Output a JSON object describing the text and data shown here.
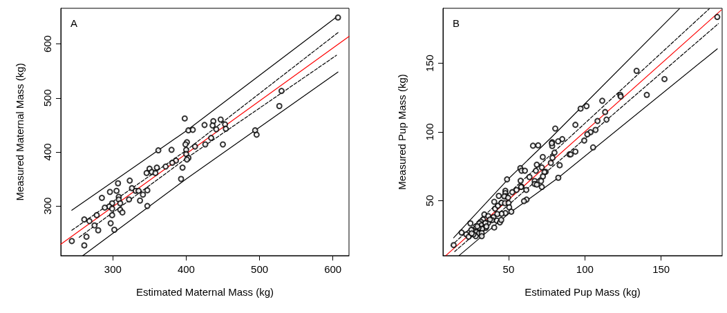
{
  "chart_data": [
    {
      "type": "scatter",
      "xlabel": "Estimated Maternal Mass (kg)",
      "ylabel": "Measured Maternal Mass (kg)",
      "annotations": [
        "A"
      ],
      "xlim": [
        229,
        622
      ],
      "xticks": [
        300,
        400,
        500,
        600
      ],
      "ylim": [
        208,
        666
      ],
      "yticks": [
        300,
        400,
        500,
        600
      ],
      "grid": false,
      "series": [
        {
          "marker": "circle",
          "color": "#000000",
          "x": [
            607,
            530,
            527,
            494,
            496,
            398,
            403,
            409,
            425,
            437,
            436,
            447,
            453,
            454,
            441,
            434,
            426,
            450,
            401,
            399,
            412,
            400,
            400,
            403,
            401,
            395,
            393,
            380,
            362,
            386,
            381,
            372,
            360,
            350,
            353,
            346,
            358,
            323,
            307,
            305,
            326,
            331,
            335,
            347,
            341,
            337,
            322,
            347,
            296,
            285,
            308,
            308,
            310,
            299,
            295,
            299,
            289,
            310,
            313,
            299,
            278,
            261,
            268,
            297,
            275,
            280,
            302,
            264,
            244,
            261
          ],
          "values": [
            649,
            513,
            485,
            440,
            432,
            462,
            440,
            441,
            450,
            457,
            449,
            460,
            451,
            443,
            442,
            426,
            414,
            414,
            418,
            414,
            410,
            404,
            396,
            389,
            386,
            371,
            350,
            404,
            403,
            384,
            380,
            373,
            371,
            369,
            363,
            361,
            361,
            347,
            342,
            328,
            333,
            328,
            328,
            329,
            321,
            310,
            312,
            300,
            326,
            315,
            317,
            312,
            305,
            305,
            299,
            295,
            297,
            293,
            288,
            283,
            283,
            275,
            272,
            268,
            264,
            255,
            256,
            243,
            235,
            227
          ]
        },
        {
          "type": "line",
          "line_style": "solid",
          "color": "#ff0000",
          "x": [
            229,
            622
          ],
          "values": [
            229,
            614
          ]
        },
        {
          "type": "line",
          "line_style": "solid",
          "color": "#000000",
          "x": [
            244,
            400,
            607
          ],
          "values": [
            292,
            439,
            652
          ]
        },
        {
          "type": "line",
          "line_style": "solid",
          "color": "#000000",
          "x": [
            259,
            400,
            607
          ],
          "values": [
            208,
            350,
            548
          ]
        },
        {
          "type": "line",
          "line_style": "dashed",
          "color": "#000000",
          "x": [
            244,
            400,
            607
          ],
          "values": [
            255,
            403,
            621
          ]
        },
        {
          "type": "line",
          "line_style": "dashed",
          "color": "#000000",
          "x": [
            254,
            400,
            605
          ],
          "values": [
            242,
            388,
            579
          ]
        }
      ]
    },
    {
      "type": "scatter",
      "xlabel": "Estimated Pup Mass (kg)",
      "ylabel": "Measured Pup Mass (kg)",
      "annotations": [
        "B"
      ],
      "xlim": [
        7,
        190
      ],
      "xticks": [
        50,
        100,
        150
      ],
      "ylim": [
        10,
        190
      ],
      "yticks": [
        50,
        100,
        150
      ],
      "grid": false,
      "series": [
        {
          "marker": "circle",
          "color": "#000000",
          "x": [
            186.8,
            133.9,
            152.2,
            140.6,
            123.2,
            123.5,
            111.4,
            113.3,
            114.2,
            108.3,
            107,
            103.7,
            101.6,
            99.6,
            105.4,
            97.2,
            101.1,
            93.8,
            93.8,
            89.9,
            90.7,
            80.6,
            85.2,
            82.5,
            78.6,
            78.6,
            78.3,
            80.1,
            78.8,
            77.7,
            83.5,
            82.6,
            66,
            69.4,
            72.4,
            68.5,
            71.8,
            67.9,
            74.3,
            73.5,
            72.5,
            63.7,
            67.1,
            71.3,
            67.1,
            68.5,
            71.8,
            57.7,
            58.5,
            60.7,
            57.9,
            58.5,
            58.2,
            61.6,
            61.8,
            60.1,
            49,
            55.2,
            52.4,
            47.9,
            47.9,
            48.4,
            47.2,
            49.7,
            43.6,
            40.6,
            41.2,
            43,
            45.4,
            47.6,
            50,
            50.4,
            51.8,
            47.9,
            45.4,
            42.6,
            40.1,
            39.2,
            42.3,
            44.3,
            45.2,
            40.6,
            34.1,
            36.7,
            36.6,
            33.3,
            31.8,
            30.8,
            32.3,
            34.1,
            35.1,
            32.7,
            30.3,
            28.2,
            27,
            28.8,
            30.6,
            32.4,
            32.4,
            28.5,
            27,
            25.6,
            25,
            22.3,
            23.8,
            19.2,
            14,
            34.8,
            37.8,
            35.5,
            29.5,
            25.8
          ],
          "values": [
            183.7,
            144.5,
            138.5,
            127,
            127,
            125.8,
            122.7,
            114.5,
            109,
            108,
            101.5,
            99.8,
            98.3,
            93.8,
            88.8,
            117,
            118.8,
            105.2,
            85.7,
            83.7,
            83.7,
            102.5,
            94.8,
            93.2,
            92.5,
            89.8,
            91.8,
            85,
            81.2,
            77.5,
            75.8,
            66.7,
            90,
            90.3,
            81.8,
            76.2,
            74.2,
            71.8,
            71,
            70.8,
            67.7,
            67.2,
            64.3,
            64.3,
            62.2,
            61.7,
            60,
            73.7,
            71.8,
            71.8,
            64.5,
            60.2,
            60,
            57.8,
            50.8,
            49.7,
            65.5,
            57.8,
            56.2,
            57.2,
            55.5,
            53.2,
            53.2,
            52.2,
            53.5,
            49.2,
            44.2,
            46.3,
            48.5,
            48.2,
            48.3,
            45.2,
            42,
            41,
            40.5,
            40.3,
            38,
            35.8,
            35.5,
            34.2,
            36,
            30.5,
            40,
            38.8,
            33.8,
            36.3,
            34.7,
            33.5,
            32.2,
            30.5,
            30.2,
            29.5,
            30.2,
            29.5,
            28,
            27.2,
            26.2,
            26.5,
            24.2,
            24.2,
            25.5,
            28.8,
            33.5,
            25.5,
            23.8,
            26.8,
            17.7,
            33.8,
            36.3,
            31.3,
            31.3,
            26.2
          ]
        },
        {
          "type": "line",
          "line_style": "solid",
          "color": "#ff0000",
          "x": [
            9,
            189.5
          ],
          "values": [
            10.2,
            188.8
          ]
        },
        {
          "type": "line",
          "line_style": "solid",
          "color": "#000000",
          "x": [
            14,
            50,
            78,
            162
          ],
          "values": [
            23,
            66,
            96,
            189.7
          ]
        },
        {
          "type": "line",
          "line_style": "solid",
          "color": "#000000",
          "x": [
            17.7,
            50,
            82.6,
            186.8
          ],
          "values": [
            10.2,
            40.5,
            66.7,
            160.5
          ]
        },
        {
          "type": "line",
          "line_style": "dashed",
          "color": "#000000",
          "x": [
            12.4,
            78,
            181.6
          ],
          "values": [
            17.2,
            83.8,
            189.7
          ]
        },
        {
          "type": "line",
          "line_style": "dashed",
          "color": "#000000",
          "x": [
            14.7,
            78,
            187.5
          ],
          "values": [
            13,
            74,
            178.8
          ]
        }
      ]
    }
  ]
}
